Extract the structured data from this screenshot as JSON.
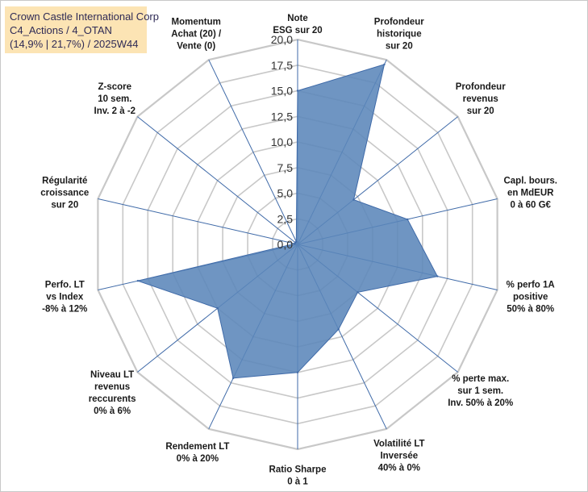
{
  "title_box": {
    "line1": "Crown Castle International Corp",
    "line2": "C4_Actions / 4_OTAN",
    "line3": "(14,9% | 21,7%) / 2025W44"
  },
  "colors": {
    "fill": "#5b86b9",
    "stroke": "#3f6aa8",
    "grid": "#c8c8c8",
    "axis": "#3f6aa8"
  },
  "chart_data": {
    "type": "radar",
    "rmin": 0,
    "rmax": 20,
    "ticks": [
      "0,0",
      "2,5",
      "5,0",
      "7,5",
      "10,0",
      "12,5",
      "15,0",
      "17,5",
      "20,0"
    ],
    "axes": [
      {
        "label": [
          "Note",
          "ESG sur 20"
        ],
        "value": 15.0
      },
      {
        "label": [
          "Profondeur",
          "historique",
          "sur 20"
        ],
        "value": 19.5
      },
      {
        "label": [
          "Profondeur",
          "revenus",
          "sur 20"
        ],
        "value": 7.0
      },
      {
        "label": [
          "Capl. bours.",
          "en MdEUR",
          "0 à 60 G€"
        ],
        "value": 11.0
      },
      {
        "label": [
          "% perfo 1A",
          "positive",
          "50% à 80%"
        ],
        "value": 14.0
      },
      {
        "label": [
          "% perte max.",
          "sur 1 sem.",
          "Inv. 50% à 20%"
        ],
        "value": 7.5
      },
      {
        "label": [
          "Volatilité LT",
          "Inversée",
          "40% à 0%"
        ],
        "value": 9.2
      },
      {
        "label": [
          "Ratio Sharpe",
          "0 à 1"
        ],
        "value": 12.5
      },
      {
        "label": [
          "Rendement LT",
          "0% à 20%"
        ],
        "value": 14.5
      },
      {
        "label": [
          "Niveau LT",
          "revenus",
          "reccurents",
          "0% à 6%"
        ],
        "value": 10.0
      },
      {
        "label": [
          "Perfo. LT",
          "vs Index",
          "-8% à 12%"
        ],
        "value": 16.0
      },
      {
        "label": [
          "Régularité",
          "croissance",
          "sur 20"
        ],
        "value": 0.3
      },
      {
        "label": [
          "Z-score",
          "10 sem.",
          "Inv. 2 à -2"
        ],
        "value": 0.3
      },
      {
        "label": [
          "Momentum",
          "Achat (20) /",
          "Vente (0)"
        ],
        "value": 0.3
      }
    ]
  }
}
